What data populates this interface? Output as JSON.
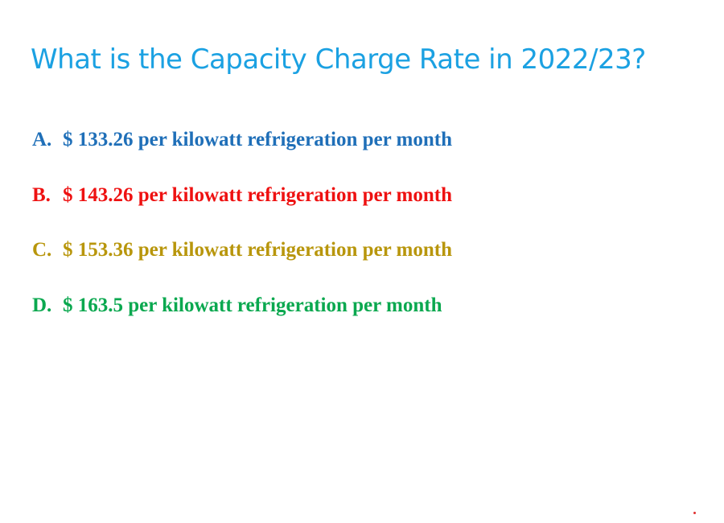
{
  "question": {
    "text": "What is the Capacity Charge Rate in 2022/23?",
    "color": "#1ba1e2"
  },
  "options": [
    {
      "letter": "A.",
      "text": "$ 133.26 per kilowatt refrigeration per month",
      "color": "#1f6fb8"
    },
    {
      "letter": "B.",
      "text": "$ 143.26 per kilowatt refrigeration per month",
      "color": "#ee1111"
    },
    {
      "letter": "C.",
      "text": "$ 153.36 per kilowatt refrigeration per month",
      "color": "#b8960c"
    },
    {
      "letter": "D.",
      "text": "$ 163.5 per kilowatt refrigeration per month",
      "color": "#0aa84f"
    }
  ],
  "marker": {
    "color": "#e03030"
  }
}
